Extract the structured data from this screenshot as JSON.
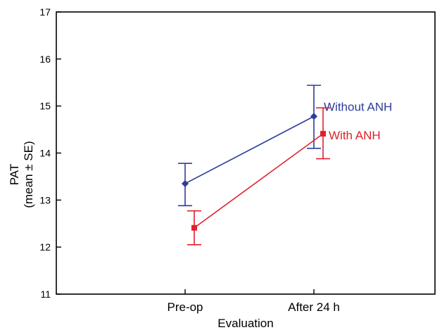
{
  "chart_data": {
    "type": "line",
    "xlabel": "Evaluation",
    "ylabel": "PAT",
    "ylabel_sub": "(mean ± SE)",
    "categories": [
      "Pre-op",
      "After 24 h"
    ],
    "ylim": [
      11,
      17
    ],
    "yticks": [
      "11",
      "12",
      "13",
      "14",
      "15",
      "16",
      "17"
    ],
    "grid": false,
    "series": [
      {
        "name": "Without ANH",
        "color": "#2e3d9b",
        "marker": "diamond",
        "values": [
          13.35,
          14.78
        ],
        "lower": [
          12.88,
          14.1
        ],
        "upper": [
          13.78,
          15.44
        ]
      },
      {
        "name": "With ANH",
        "color": "#e0202a",
        "marker": "square",
        "values": [
          12.41,
          14.41
        ],
        "lower": [
          12.05,
          13.88
        ],
        "upper": [
          12.77,
          14.96
        ]
      }
    ]
  }
}
